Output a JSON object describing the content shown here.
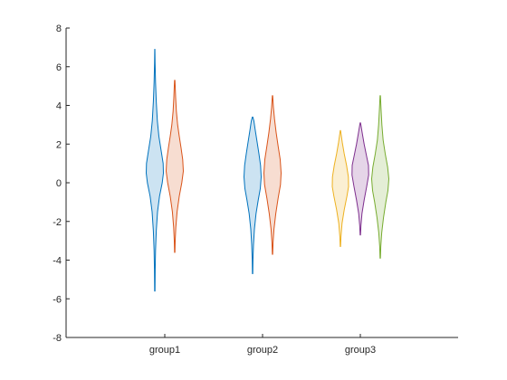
{
  "chart_data": {
    "type": "violin",
    "title": "",
    "xlabel": "",
    "ylabel": "",
    "ylim": [
      -8,
      8
    ],
    "yticks": [
      -8,
      -6,
      -4,
      -2,
      0,
      2,
      4,
      6,
      8
    ],
    "categories": [
      "group1",
      "group2",
      "group3"
    ],
    "grid": false,
    "violins": [
      {
        "category": "group1",
        "slot": 0,
        "slots": 2,
        "color": "#0072BD",
        "profile": [
          [
            -5.6,
            0.02
          ],
          [
            -4.5,
            0.04
          ],
          [
            -3.5,
            0.08
          ],
          [
            -2.5,
            0.16
          ],
          [
            -1.5,
            0.3
          ],
          [
            -0.7,
            0.52
          ],
          [
            0,
            0.82
          ],
          [
            0.5,
            0.95
          ],
          [
            1.0,
            0.92
          ],
          [
            1.6,
            0.72
          ],
          [
            2.4,
            0.45
          ],
          [
            3.2,
            0.28
          ],
          [
            4.2,
            0.16
          ],
          [
            5.2,
            0.08
          ],
          [
            6.2,
            0.03
          ],
          [
            6.9,
            0.01
          ]
        ]
      },
      {
        "category": "group1",
        "slot": 1,
        "slots": 2,
        "color": "#D95319",
        "profile": [
          [
            -3.6,
            0.02
          ],
          [
            -3.0,
            0.05
          ],
          [
            -2.3,
            0.12
          ],
          [
            -1.5,
            0.26
          ],
          [
            -0.7,
            0.5
          ],
          [
            0,
            0.78
          ],
          [
            0.6,
            0.95
          ],
          [
            1.2,
            0.88
          ],
          [
            1.8,
            0.7
          ],
          [
            2.4,
            0.5
          ],
          [
            3.0,
            0.32
          ],
          [
            3.7,
            0.18
          ],
          [
            4.4,
            0.1
          ],
          [
            5.0,
            0.05
          ],
          [
            5.3,
            0.02
          ]
        ]
      },
      {
        "category": "group2",
        "slot": 0,
        "slots": 2,
        "color": "#0072BD",
        "profile": [
          [
            -4.7,
            0.02
          ],
          [
            -4.0,
            0.04
          ],
          [
            -3.2,
            0.1
          ],
          [
            -2.4,
            0.2
          ],
          [
            -1.6,
            0.38
          ],
          [
            -0.9,
            0.62
          ],
          [
            -0.3,
            0.85
          ],
          [
            0.3,
            0.95
          ],
          [
            0.9,
            0.88
          ],
          [
            1.5,
            0.7
          ],
          [
            2.1,
            0.5
          ],
          [
            2.7,
            0.3
          ],
          [
            3.2,
            0.14
          ],
          [
            3.4,
            0.03
          ]
        ]
      },
      {
        "category": "group2",
        "slot": 1,
        "slots": 2,
        "color": "#D95319",
        "profile": [
          [
            -3.7,
            0.02
          ],
          [
            -3.1,
            0.06
          ],
          [
            -2.4,
            0.16
          ],
          [
            -1.6,
            0.36
          ],
          [
            -0.8,
            0.62
          ],
          [
            -0.1,
            0.88
          ],
          [
            0.5,
            0.95
          ],
          [
            1.2,
            0.85
          ],
          [
            1.9,
            0.62
          ],
          [
            2.6,
            0.4
          ],
          [
            3.3,
            0.22
          ],
          [
            3.9,
            0.1
          ],
          [
            4.5,
            0.02
          ]
        ]
      },
      {
        "category": "group3",
        "slot": 0,
        "slots": 3,
        "color": "#EDB120",
        "profile": [
          [
            -3.3,
            0.02
          ],
          [
            -2.8,
            0.06
          ],
          [
            -2.1,
            0.18
          ],
          [
            -1.4,
            0.42
          ],
          [
            -0.7,
            0.72
          ],
          [
            -0.2,
            0.9
          ],
          [
            0.3,
            0.88
          ],
          [
            0.9,
            0.68
          ],
          [
            1.5,
            0.42
          ],
          [
            2.1,
            0.2
          ],
          [
            2.5,
            0.08
          ],
          [
            2.7,
            0.02
          ]
        ]
      },
      {
        "category": "group3",
        "slot": 1,
        "slots": 3,
        "color": "#7E2F8E",
        "profile": [
          [
            -2.7,
            0.02
          ],
          [
            -2.2,
            0.07
          ],
          [
            -1.6,
            0.18
          ],
          [
            -0.9,
            0.42
          ],
          [
            -0.2,
            0.7
          ],
          [
            0.4,
            0.92
          ],
          [
            0.9,
            0.9
          ],
          [
            1.4,
            0.68
          ],
          [
            2.0,
            0.42
          ],
          [
            2.6,
            0.2
          ],
          [
            3.0,
            0.06
          ],
          [
            3.1,
            0.02
          ]
        ]
      },
      {
        "category": "group3",
        "slot": 2,
        "slots": 3,
        "color": "#77AC30",
        "profile": [
          [
            -3.9,
            0.02
          ],
          [
            -3.3,
            0.06
          ],
          [
            -2.6,
            0.16
          ],
          [
            -1.8,
            0.36
          ],
          [
            -1.0,
            0.62
          ],
          [
            -0.4,
            0.85
          ],
          [
            0.2,
            0.95
          ],
          [
            0.8,
            0.82
          ],
          [
            1.5,
            0.55
          ],
          [
            2.2,
            0.32
          ],
          [
            3.0,
            0.18
          ],
          [
            3.8,
            0.09
          ],
          [
            4.5,
            0.02
          ]
        ]
      }
    ]
  }
}
